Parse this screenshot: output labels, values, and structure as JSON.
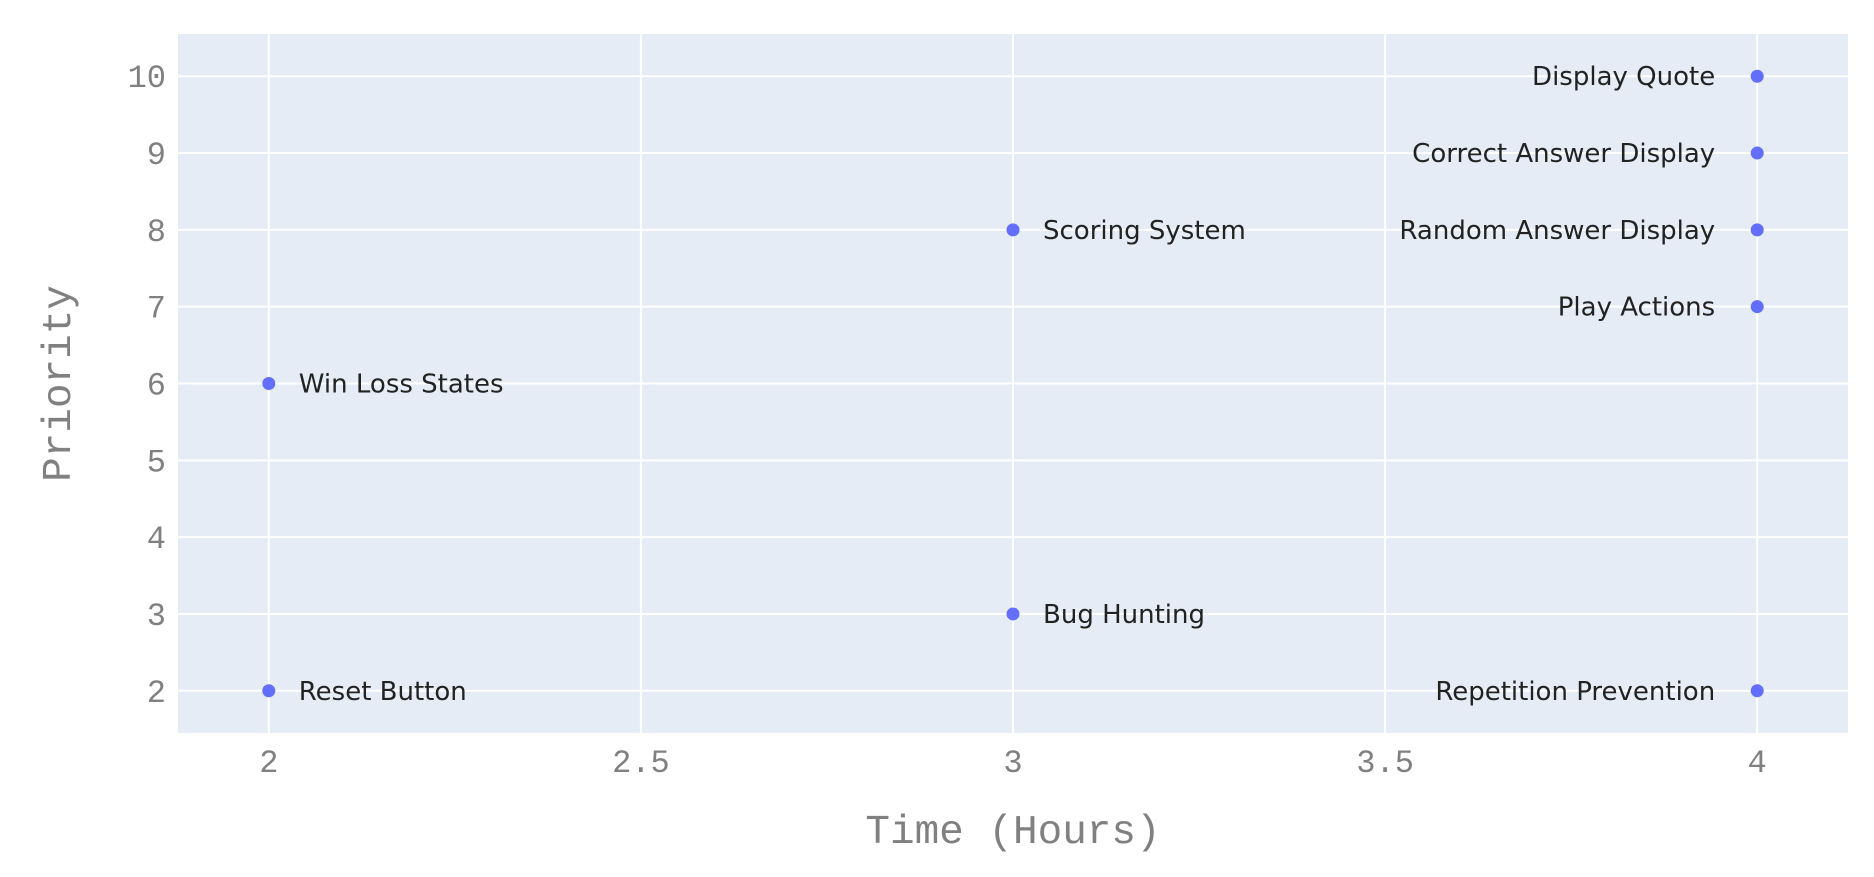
{
  "chart_data": {
    "type": "scatter",
    "title": "",
    "xlabel": "Time (Hours)",
    "ylabel": "Priority",
    "xlim": [
      1.878,
      4.122
    ],
    "ylim": [
      1.45,
      10.55
    ],
    "x_ticks": [
      2,
      2.5,
      3,
      3.5,
      4
    ],
    "x_tick_labels": [
      "2",
      "2.5",
      "3",
      "3.5",
      "4"
    ],
    "y_ticks": [
      2,
      3,
      4,
      5,
      6,
      7,
      8,
      9,
      10
    ],
    "y_tick_labels": [
      "2",
      "3",
      "4",
      "5",
      "6",
      "7",
      "8",
      "9",
      "10"
    ],
    "grid": true,
    "legend": "none",
    "colors": {
      "plot_background": "#e5ecf6",
      "gridline": "#ffffff",
      "marker": "#636efa",
      "label_text": "#222222",
      "axis_text": "#808080"
    },
    "points": [
      {
        "label": "Display Quote",
        "x": 4,
        "y": 10,
        "label_side": "left"
      },
      {
        "label": "Correct Answer Display",
        "x": 4,
        "y": 9,
        "label_side": "left"
      },
      {
        "label": "Random Answer Display",
        "x": 4,
        "y": 8,
        "label_side": "left"
      },
      {
        "label": "Play Actions",
        "x": 4,
        "y": 7,
        "label_side": "left"
      },
      {
        "label": "Repetition Prevention",
        "x": 4,
        "y": 2,
        "label_side": "left"
      },
      {
        "label": "Scoring System",
        "x": 3,
        "y": 8,
        "label_side": "right"
      },
      {
        "label": "Bug Hunting",
        "x": 3,
        "y": 3,
        "label_side": "right"
      },
      {
        "label": "Win Loss States",
        "x": 2,
        "y": 6,
        "label_side": "right"
      },
      {
        "label": "Reset Button",
        "x": 2,
        "y": 2,
        "label_side": "right"
      }
    ]
  }
}
